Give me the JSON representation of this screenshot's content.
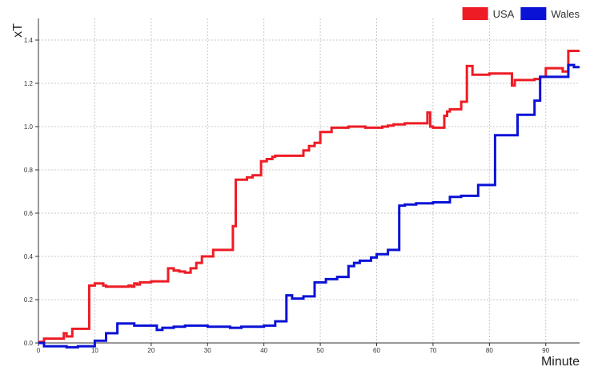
{
  "chart_data": {
    "type": "line",
    "step": true,
    "xlabel": "Minute",
    "ylabel": "xT",
    "xlim": [
      0,
      96
    ],
    "ylim": [
      0,
      1.5
    ],
    "xticks": [
      0,
      10,
      20,
      30,
      40,
      50,
      60,
      70,
      80,
      90
    ],
    "yticks": [
      0.0,
      0.2,
      0.4,
      0.6,
      0.8,
      1.0,
      1.2,
      1.4
    ],
    "ytick_labels": [
      "0.0",
      "0.2",
      "0.4",
      "0.6",
      "0.8",
      "1.0",
      "1.2",
      "1.4"
    ],
    "grid": true,
    "legend_position": "top-right",
    "series": [
      {
        "name": "USA",
        "color": "#ee1c25",
        "x": [
          0,
          1,
          4.5,
          5,
          6,
          9,
          10,
          11.5,
          12,
          16,
          16.5,
          17,
          17.5,
          18,
          20,
          23,
          24,
          25,
          26,
          27,
          28,
          29,
          31,
          34.5,
          35,
          37,
          38,
          39.5,
          40.5,
          41.5,
          42,
          47,
          48,
          49,
          50,
          52,
          55,
          58,
          60,
          61,
          62,
          63,
          65,
          69,
          69.5,
          70,
          72,
          72.5,
          73,
          75,
          76,
          77,
          80,
          84,
          84.5,
          85,
          88,
          89,
          90,
          93,
          94,
          95,
          96
        ],
        "y": [
          0.005,
          0.02,
          0.045,
          0.03,
          0.065,
          0.265,
          0.275,
          0.265,
          0.26,
          0.265,
          0.26,
          0.275,
          0.27,
          0.28,
          0.285,
          0.345,
          0.335,
          0.33,
          0.325,
          0.345,
          0.37,
          0.4,
          0.43,
          0.54,
          0.755,
          0.765,
          0.775,
          0.84,
          0.85,
          0.86,
          0.865,
          0.89,
          0.91,
          0.925,
          0.975,
          0.995,
          1.0,
          0.995,
          0.995,
          1.0,
          1.005,
          1.01,
          1.015,
          1.065,
          1.0,
          0.995,
          1.05,
          1.07,
          1.08,
          1.115,
          1.28,
          1.24,
          1.245,
          1.19,
          1.215,
          1.215,
          1.22,
          1.23,
          1.27,
          1.255,
          1.35,
          1.35,
          1.35
        ]
      },
      {
        "name": "Wales",
        "color": "#0a12d6",
        "x": [
          0,
          1,
          2,
          5,
          7,
          10,
          12,
          14,
          17,
          18,
          19,
          21,
          22,
          24,
          26,
          30,
          34,
          36,
          40,
          42,
          44,
          45,
          47,
          49,
          51,
          53,
          55,
          56,
          57,
          59,
          60,
          62,
          64,
          65,
          67,
          70,
          73,
          75,
          78,
          81,
          85,
          88,
          89,
          91,
          93,
          94,
          95,
          96
        ],
        "y": [
          0.0,
          -0.015,
          -0.015,
          -0.02,
          -0.015,
          0.01,
          0.045,
          0.09,
          0.08,
          0.08,
          0.08,
          0.06,
          0.07,
          0.075,
          0.08,
          0.075,
          0.07,
          0.075,
          0.08,
          0.1,
          0.22,
          0.205,
          0.215,
          0.28,
          0.295,
          0.305,
          0.355,
          0.37,
          0.38,
          0.395,
          0.41,
          0.43,
          0.635,
          0.64,
          0.645,
          0.65,
          0.675,
          0.68,
          0.73,
          0.96,
          1.055,
          1.12,
          1.23,
          1.23,
          1.23,
          1.285,
          1.275,
          1.275
        ]
      }
    ]
  }
}
